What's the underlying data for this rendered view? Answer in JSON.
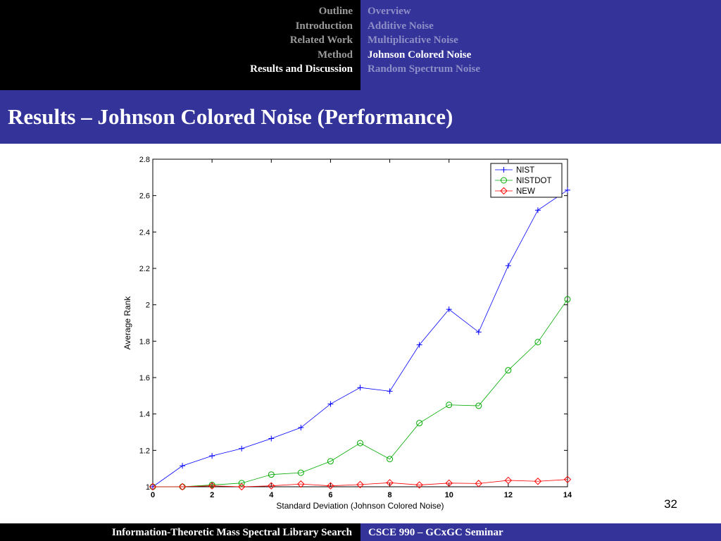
{
  "nav": {
    "sections": [
      {
        "label": "Outline",
        "active": false
      },
      {
        "label": "Introduction",
        "active": false
      },
      {
        "label": "Related Work",
        "active": false
      },
      {
        "label": "Method",
        "active": false
      },
      {
        "label": "Results and Discussion",
        "active": true
      }
    ],
    "subsections": [
      {
        "label": "Overview",
        "active": false
      },
      {
        "label": "Additive Noise",
        "active": false
      },
      {
        "label": "Multiplicative Noise",
        "active": false
      },
      {
        "label": "Johnson Colored Noise",
        "active": true
      },
      {
        "label": "Random Spectrum Noise",
        "active": false
      }
    ]
  },
  "slide": {
    "title": "Results – Johnson Colored Noise (Performance)",
    "page_number": "32"
  },
  "footer": {
    "left": "Information-Theoretic Mass Spectral Library Search",
    "right": "CSCE 990 – GCxGC Seminar"
  },
  "colors": {
    "nav_left_bg": "#000000",
    "theme_blue": "#333399",
    "inactive_text": "#8f8fc8",
    "active_text": "#ffffff"
  },
  "chart_data": {
    "type": "line",
    "xlabel": "Standard Deviation (Johnson Colored Noise)",
    "ylabel": "Average Rank",
    "xlim": [
      0,
      14
    ],
    "ylim": [
      1,
      2.8
    ],
    "xticks": [
      0,
      2,
      4,
      6,
      8,
      10,
      12,
      14
    ],
    "yticks": [
      1,
      1.2,
      1.4,
      1.6,
      1.8,
      2,
      2.2,
      2.4,
      2.6,
      2.8
    ],
    "grid": false,
    "legend_position": "top-right",
    "x": [
      0,
      1,
      2,
      3,
      4,
      5,
      6,
      7,
      8,
      9,
      10,
      11,
      12,
      13,
      14
    ],
    "series": [
      {
        "name": "NIST",
        "color": "#0000ff",
        "marker": "plus",
        "values": [
          1.0,
          1.115,
          1.17,
          1.21,
          1.265,
          1.325,
          1.455,
          1.545,
          1.525,
          1.78,
          1.975,
          1.85,
          2.215,
          2.52,
          2.63
        ]
      },
      {
        "name": "NISTDOT",
        "color": "#00aa00",
        "marker": "circle",
        "values": [
          1.0,
          1.0,
          1.01,
          1.02,
          1.067,
          1.077,
          1.14,
          1.24,
          1.152,
          1.35,
          1.45,
          1.445,
          1.64,
          1.795,
          2.03
        ]
      },
      {
        "name": "NEW",
        "color": "#ff0000",
        "marker": "diamond",
        "values": [
          1.0,
          1.0,
          1.005,
          1.0,
          1.005,
          1.015,
          1.005,
          1.012,
          1.022,
          1.01,
          1.02,
          1.018,
          1.035,
          1.03,
          1.04
        ]
      }
    ]
  }
}
